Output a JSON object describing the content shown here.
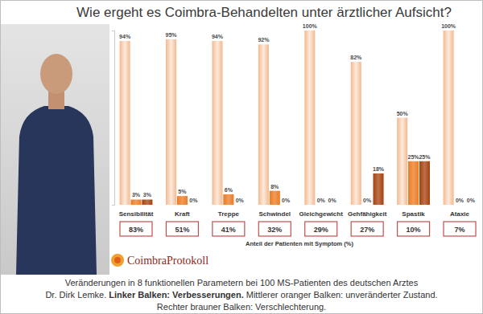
{
  "chart_data": {
    "type": "bar",
    "title": "Wie ergeht es Coimbra-Behandelten unter ärztlicher Aufsicht?",
    "categories": [
      "Sensibilität",
      "Kraft",
      "Treppe",
      "Schwindel",
      "Gleichgewicht",
      "Gehfähigkeit",
      "Spastik",
      "Ataxie"
    ],
    "series": [
      {
        "color": "#f4b98f",
        "values": [
          94,
          95,
          94,
          92,
          100,
          82,
          50,
          100
        ],
        "value_labels": [
          "94%",
          "95%",
          "94%",
          "92%",
          "100%",
          "82%",
          "50%",
          "100%"
        ]
      },
      {
        "color": "#ec7a22",
        "values": [
          3,
          5,
          6,
          8,
          0,
          0,
          25,
          0
        ],
        "value_labels": [
          "3%",
          "5%",
          "6%",
          "8%",
          "0%",
          "0%",
          "25%",
          "0%"
        ]
      },
      {
        "color": "#a5410f",
        "values": [
          3,
          0,
          0,
          0,
          0,
          18,
          25,
          0
        ],
        "value_labels": [
          "3%",
          "0%",
          "0%",
          "0%",
          "0%",
          "18%",
          "25%",
          "0%"
        ]
      }
    ],
    "ylim": [
      0,
      100
    ],
    "yticks": [
      0,
      100
    ],
    "tick_labels": false,
    "grid": false,
    "data_labels": true,
    "symptom_share": {
      "label": "Anteil der Patienten mit Symptom (%)",
      "values": [
        83,
        51,
        41,
        32,
        29,
        27,
        10,
        7
      ],
      "value_labels": [
        "83%",
        "51%",
        "41%",
        "32%",
        "29%",
        "27%",
        "10%",
        "7%"
      ]
    },
    "logo": "CoimbraProtokoll",
    "caption": [
      [
        "Veränderungen in 8 funktionellen Parametern bei 100 MS-Patienten des deutschen Arztes"
      ],
      [
        "Dr. Dirk Lemke.",
        "Linker Balken: Verbesserungen.",
        "Mittlerer oranger Balken: unveränderter Zustand."
      ],
      [
        "Rechter brauner Balken: Verschlechterung."
      ]
    ]
  }
}
